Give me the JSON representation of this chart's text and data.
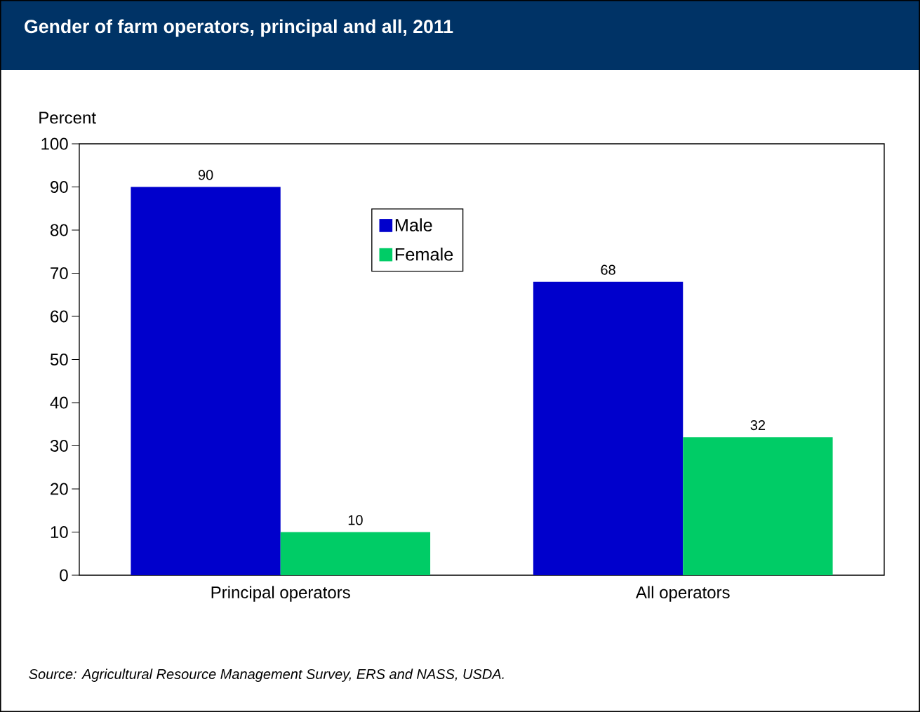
{
  "chart_data": {
    "type": "bar",
    "title": "Gender of farm operators, principal and all, 2011",
    "ylabel": "Percent",
    "categories": [
      "Principal operators",
      "All operators"
    ],
    "series": [
      {
        "name": "Male",
        "color": "#0000cc",
        "values": [
          90,
          68
        ]
      },
      {
        "name": "Female",
        "color": "#00cc66",
        "values": [
          10,
          32
        ]
      }
    ],
    "ylim": [
      0,
      100
    ],
    "yticks": [
      0,
      10,
      20,
      30,
      40,
      50,
      60,
      70,
      80,
      90,
      100
    ],
    "data_labels": true,
    "legend": "top",
    "grid": false,
    "annotations": [
      "Source: Agricultural Resource Management Survey, ERS and NASS, USDA."
    ]
  }
}
